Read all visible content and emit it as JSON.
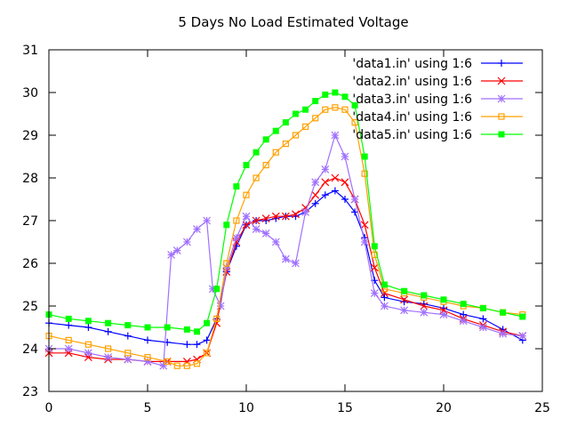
{
  "chart_data": {
    "type": "line",
    "title": "5 Days No Load Estimated Voltage",
    "xlabel": "",
    "ylabel": "",
    "xlim": [
      0,
      25
    ],
    "ylim": [
      23,
      31
    ],
    "xticks": [
      0,
      5,
      10,
      15,
      20,
      25
    ],
    "yticks": [
      23,
      24,
      25,
      26,
      27,
      28,
      29,
      30,
      31
    ],
    "grid": false,
    "legend_position": "top-right",
    "series": [
      {
        "name": "'data1.in' using 1:6",
        "color": "#0000ff",
        "marker": "plus",
        "points": [
          [
            0,
            24.6
          ],
          [
            1,
            24.55
          ],
          [
            2,
            24.5
          ],
          [
            3,
            24.4
          ],
          [
            4,
            24.3
          ],
          [
            5,
            24.2
          ],
          [
            6,
            24.15
          ],
          [
            7,
            24.1
          ],
          [
            7.5,
            24.1
          ],
          [
            8,
            24.2
          ],
          [
            8.5,
            24.7
          ],
          [
            9,
            25.8
          ],
          [
            9.5,
            26.4
          ],
          [
            10,
            26.9
          ],
          [
            10.5,
            27.0
          ],
          [
            11,
            27.0
          ],
          [
            11.5,
            27.05
          ],
          [
            12,
            27.1
          ],
          [
            12.5,
            27.1
          ],
          [
            13,
            27.2
          ],
          [
            13.5,
            27.4
          ],
          [
            14,
            27.6
          ],
          [
            14.5,
            27.7
          ],
          [
            15,
            27.5
          ],
          [
            15.5,
            27.2
          ],
          [
            16,
            26.6
          ],
          [
            16.5,
            25.6
          ],
          [
            17,
            25.2
          ],
          [
            18,
            25.1
          ],
          [
            19,
            25.05
          ],
          [
            20,
            24.95
          ],
          [
            21,
            24.8
          ],
          [
            22,
            24.7
          ],
          [
            23,
            24.45
          ],
          [
            24,
            24.2
          ]
        ]
      },
      {
        "name": "'data2.in' using 1:6",
        "color": "#ff0000",
        "marker": "cross",
        "points": [
          [
            0,
            23.9
          ],
          [
            1,
            23.9
          ],
          [
            2,
            23.8
          ],
          [
            3,
            23.75
          ],
          [
            4,
            23.75
          ],
          [
            5,
            23.7
          ],
          [
            6,
            23.7
          ],
          [
            7,
            23.7
          ],
          [
            7.5,
            23.75
          ],
          [
            8,
            23.9
          ],
          [
            8.5,
            24.6
          ],
          [
            9,
            25.8
          ],
          [
            9.5,
            26.5
          ],
          [
            10,
            26.9
          ],
          [
            10.5,
            27.0
          ],
          [
            11,
            27.05
          ],
          [
            11.5,
            27.1
          ],
          [
            12,
            27.1
          ],
          [
            12.5,
            27.15
          ],
          [
            13,
            27.3
          ],
          [
            13.5,
            27.6
          ],
          [
            14,
            27.9
          ],
          [
            14.5,
            28.0
          ],
          [
            15,
            27.9
          ],
          [
            15.5,
            27.5
          ],
          [
            16,
            26.9
          ],
          [
            16.5,
            25.9
          ],
          [
            17,
            25.3
          ],
          [
            18,
            25.15
          ],
          [
            19,
            25.0
          ],
          [
            20,
            24.9
          ],
          [
            21,
            24.7
          ],
          [
            22,
            24.55
          ],
          [
            23,
            24.4
          ],
          [
            24,
            24.3
          ]
        ]
      },
      {
        "name": "'data3.in' using 1:6",
        "color": "#a070ff",
        "marker": "star",
        "points": [
          [
            0,
            24.0
          ],
          [
            1,
            24.0
          ],
          [
            2,
            23.9
          ],
          [
            3,
            23.8
          ],
          [
            4,
            23.75
          ],
          [
            5,
            23.7
          ],
          [
            5.8,
            23.6
          ],
          [
            6.2,
            26.2
          ],
          [
            6.5,
            26.3
          ],
          [
            7,
            26.5
          ],
          [
            7.5,
            26.8
          ],
          [
            8,
            27.0
          ],
          [
            8.3,
            25.4
          ],
          [
            8.7,
            25.0
          ],
          [
            9,
            25.9
          ],
          [
            9.5,
            26.6
          ],
          [
            10,
            27.1
          ],
          [
            10.5,
            26.8
          ],
          [
            11,
            26.7
          ],
          [
            11.5,
            26.5
          ],
          [
            12,
            26.1
          ],
          [
            12.5,
            26.0
          ],
          [
            13,
            27.2
          ],
          [
            13.5,
            27.9
          ],
          [
            14,
            28.2
          ],
          [
            14.5,
            29.0
          ],
          [
            15,
            28.5
          ],
          [
            15.5,
            27.5
          ],
          [
            16,
            26.5
          ],
          [
            16.5,
            25.3
          ],
          [
            17,
            25.0
          ],
          [
            18,
            24.9
          ],
          [
            19,
            24.85
          ],
          [
            20,
            24.8
          ],
          [
            21,
            24.65
          ],
          [
            22,
            24.5
          ],
          [
            23,
            24.35
          ],
          [
            24,
            24.3
          ]
        ]
      },
      {
        "name": "'data4.in' using 1:6",
        "color": "#ffa000",
        "marker": "open-square",
        "points": [
          [
            0,
            24.3
          ],
          [
            1,
            24.2
          ],
          [
            2,
            24.1
          ],
          [
            3,
            24.0
          ],
          [
            4,
            23.9
          ],
          [
            5,
            23.8
          ],
          [
            6,
            23.7
          ],
          [
            6.5,
            23.6
          ],
          [
            7,
            23.6
          ],
          [
            7.5,
            23.65
          ],
          [
            8,
            23.9
          ],
          [
            8.5,
            24.7
          ],
          [
            9,
            26.0
          ],
          [
            9.5,
            27.0
          ],
          [
            10,
            27.6
          ],
          [
            10.5,
            28.0
          ],
          [
            11,
            28.3
          ],
          [
            11.5,
            28.6
          ],
          [
            12,
            28.8
          ],
          [
            12.5,
            29.0
          ],
          [
            13,
            29.2
          ],
          [
            13.5,
            29.4
          ],
          [
            14,
            29.6
          ],
          [
            14.5,
            29.65
          ],
          [
            15,
            29.6
          ],
          [
            15.5,
            29.3
          ],
          [
            16,
            28.1
          ],
          [
            16.5,
            26.2
          ],
          [
            17,
            25.4
          ],
          [
            18,
            25.3
          ],
          [
            19,
            25.2
          ],
          [
            20,
            25.1
          ],
          [
            21,
            25.0
          ],
          [
            22,
            24.95
          ],
          [
            23,
            24.85
          ],
          [
            24,
            24.8
          ]
        ]
      },
      {
        "name": "'data5.in' using 1:6",
        "color": "#00ff00",
        "marker": "filled-square",
        "points": [
          [
            0,
            24.8
          ],
          [
            1,
            24.7
          ],
          [
            2,
            24.65
          ],
          [
            3,
            24.6
          ],
          [
            4,
            24.55
          ],
          [
            5,
            24.5
          ],
          [
            6,
            24.5
          ],
          [
            7,
            24.45
          ],
          [
            7.5,
            24.4
          ],
          [
            8,
            24.6
          ],
          [
            8.5,
            25.4
          ],
          [
            9,
            26.9
          ],
          [
            9.5,
            27.8
          ],
          [
            10,
            28.3
          ],
          [
            10.5,
            28.6
          ],
          [
            11,
            28.9
          ],
          [
            11.5,
            29.1
          ],
          [
            12,
            29.3
          ],
          [
            12.5,
            29.5
          ],
          [
            13,
            29.6
          ],
          [
            13.5,
            29.8
          ],
          [
            14,
            29.95
          ],
          [
            14.5,
            30.0
          ],
          [
            15,
            29.9
          ],
          [
            15.5,
            29.7
          ],
          [
            16,
            28.5
          ],
          [
            16.5,
            26.4
          ],
          [
            17,
            25.5
          ],
          [
            18,
            25.35
          ],
          [
            19,
            25.25
          ],
          [
            20,
            25.15
          ],
          [
            21,
            25.05
          ],
          [
            22,
            24.95
          ],
          [
            23,
            24.85
          ],
          [
            24,
            24.75
          ]
        ]
      }
    ]
  }
}
